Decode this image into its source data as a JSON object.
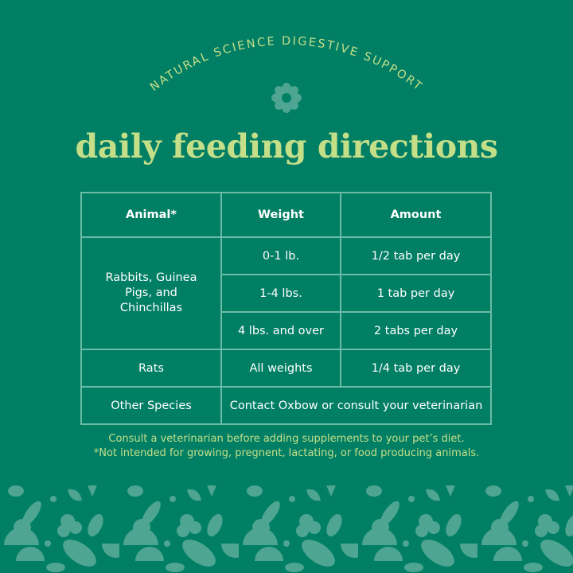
{
  "header": {
    "tagline": "NATURAL SCIENCE DIGESTIVE SUPPORT",
    "title": "daily feeding directions",
    "emblem_icon": "flower-emblem-icon"
  },
  "table": {
    "headers": [
      "Animal*",
      "Weight",
      "Amount"
    ],
    "groups": [
      {
        "animal": "Rabbits, Guinea Pigs, and Chinchillas",
        "rows": [
          {
            "weight": "0-1 lb.",
            "amount": "1/2 tab per day"
          },
          {
            "weight": "1-4 lbs.",
            "amount": "1 tab per day"
          },
          {
            "weight": "4 lbs. and over",
            "amount": "2 tabs per day"
          }
        ]
      },
      {
        "animal": "Rats",
        "rows": [
          {
            "weight": "All weights",
            "amount": "1/4 tab per day"
          }
        ]
      },
      {
        "animal": "Other Species",
        "note": "Contact Oxbow or consult your veterinarian"
      }
    ]
  },
  "notes": [
    "Consult a veterinarian before adding supplements to your pet’s diet.",
    "*Not intended for growing, pregnent, lactating, or food producing animals."
  ],
  "colors": {
    "background": "#017f65",
    "accent": "#c5df88",
    "pattern": "#4ea592",
    "grid": "#6cbca5"
  }
}
